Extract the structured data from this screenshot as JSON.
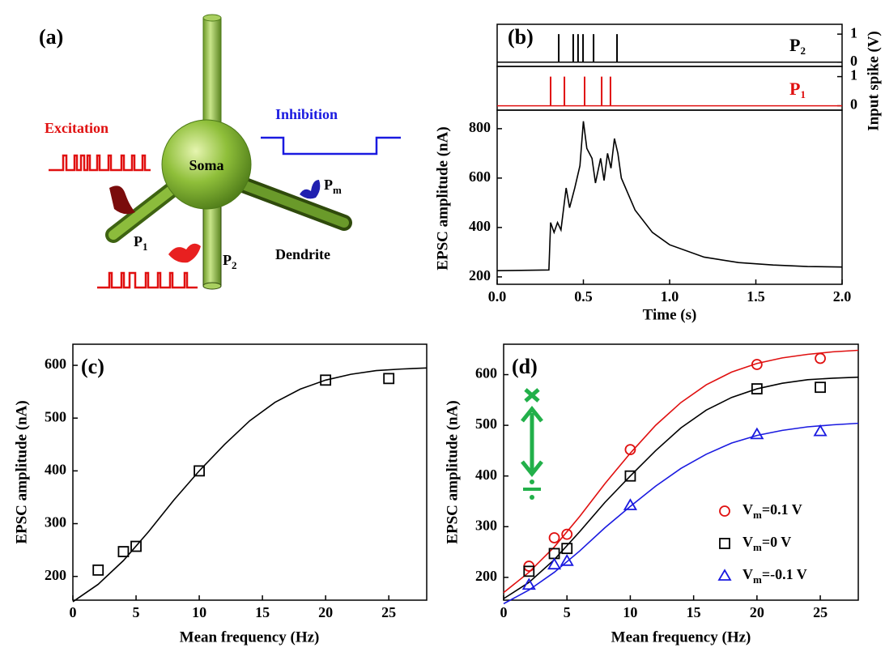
{
  "diagram": {
    "panel_label": "(a)",
    "excitation": "Excitation",
    "inhibition": "Inhibition",
    "soma": "Soma",
    "p1": [
      "P",
      "1"
    ],
    "p2": [
      "P",
      "2"
    ],
    "pm": [
      "P",
      "m"
    ],
    "dendrite": "Dendrite"
  },
  "chart_data": [
    {
      "type": "spike",
      "panel_label": "(b)",
      "name": [
        "P",
        "2"
      ],
      "color": "#000000",
      "x": [
        0.357,
        0.441,
        0.469,
        0.498,
        0.559,
        0.695
      ],
      "values": [
        1,
        1,
        1,
        1,
        1,
        1
      ],
      "xlim": [
        0,
        2
      ],
      "ylim": [
        -0.15,
        1.35
      ],
      "yticks": [
        0,
        1
      ],
      "y_label": "Input spike (V)"
    },
    {
      "type": "spike",
      "name": [
        "P",
        "1"
      ],
      "color": "#e01010",
      "x": [
        0.31,
        0.39,
        0.507,
        0.606,
        0.657
      ],
      "values": [
        1,
        1,
        1,
        1,
        1
      ],
      "xlim": [
        0,
        2
      ],
      "ylim": [
        -0.15,
        1.35
      ],
      "yticks": [
        0,
        1
      ]
    },
    {
      "type": "line",
      "color": "#000000",
      "x": [
        0,
        0.3,
        0.31,
        0.33,
        0.35,
        0.37,
        0.4,
        0.42,
        0.45,
        0.48,
        0.5,
        0.52,
        0.55,
        0.57,
        0.6,
        0.62,
        0.64,
        0.66,
        0.68,
        0.7,
        0.72,
        0.8,
        0.9,
        1.0,
        1.2,
        1.4,
        1.6,
        1.8,
        2.0
      ],
      "values": [
        225,
        228,
        420,
        380,
        420,
        390,
        560,
        480,
        560,
        650,
        830,
        720,
        680,
        580,
        680,
        590,
        700,
        640,
        760,
        700,
        600,
        470,
        380,
        330,
        280,
        258,
        248,
        242,
        240
      ],
      "xlim": [
        0,
        2
      ],
      "ylim": [
        170,
        875
      ],
      "xticks": [
        {
          "value": 0,
          "label": "0.0"
        },
        0.5,
        {
          "value": 1,
          "label": "1.0"
        },
        1.5,
        {
          "value": 2,
          "label": "2.0"
        }
      ],
      "yticks": [
        200,
        400,
        600,
        800
      ],
      "x_label": "Time (s)",
      "y_label": "EPSC amplitude (nA)"
    },
    {
      "type": "scatter",
      "panel_label": "(c)",
      "xlim": [
        0,
        28
      ],
      "ylim": [
        155,
        640
      ],
      "xticks": [
        0,
        5,
        10,
        15,
        20,
        25
      ],
      "yticks": [
        200,
        300,
        400,
        500,
        600
      ],
      "x_label": "Mean frequency (Hz)",
      "y_label": "EPSC amplitude (nA)",
      "series": [
        {
          "color": "#000000",
          "marker": "square",
          "x": [
            2,
            4,
            5,
            10,
            20,
            25
          ],
          "values": [
            212,
            247,
            257,
            400,
            572,
            575
          ]
        }
      ],
      "fits": [
        {
          "color": "#000000",
          "x": [
            0,
            2,
            4,
            6,
            8,
            10,
            12,
            14,
            16,
            18,
            20,
            22,
            24,
            26,
            28
          ],
          "values": [
            152,
            185,
            230,
            285,
            345,
            400,
            450,
            495,
            530,
            555,
            572,
            583,
            590,
            593,
            595
          ]
        }
      ]
    },
    {
      "type": "scatter",
      "panel_label": "(d)",
      "xlim": [
        0,
        28
      ],
      "ylim": [
        155,
        660
      ],
      "xticks": [
        0,
        5,
        10,
        15,
        20,
        25
      ],
      "yticks": [
        200,
        300,
        400,
        500,
        600
      ],
      "x_label": "Mean frequency (Hz)",
      "y_label": "EPSC amplitude (nA)",
      "legend": "lower right",
      "series": [
        {
          "name": [
            "V",
            "m",
            "=0.1 V"
          ],
          "color": "#e01010",
          "marker": "circle",
          "x": [
            2,
            4,
            5,
            10,
            20,
            25
          ],
          "values": [
            222,
            278,
            285,
            452,
            620,
            632
          ]
        },
        {
          "name": [
            "V",
            "m",
            "=0 V"
          ],
          "color": "#000000",
          "marker": "square",
          "x": [
            2,
            4,
            5,
            10,
            20,
            25
          ],
          "values": [
            212,
            247,
            257,
            400,
            572,
            575
          ]
        },
        {
          "name": [
            "V",
            "m",
            "=-0.1 V"
          ],
          "color": "#1a1ae0",
          "marker": "triangle",
          "x": [
            2,
            4,
            5,
            10,
            20,
            25
          ],
          "values": [
            185,
            225,
            232,
            342,
            482,
            488
          ]
        }
      ],
      "fits": [
        {
          "color": "#e01010",
          "x": [
            0,
            2,
            4,
            6,
            8,
            10,
            12,
            14,
            16,
            18,
            20,
            22,
            24,
            26,
            28
          ],
          "values": [
            170,
            210,
            260,
            320,
            385,
            445,
            500,
            545,
            580,
            605,
            622,
            633,
            640,
            645,
            648
          ]
        },
        {
          "color": "#000000",
          "x": [
            0,
            2,
            4,
            6,
            8,
            10,
            12,
            14,
            16,
            18,
            20,
            22,
            24,
            26,
            28
          ],
          "values": [
            158,
            190,
            235,
            290,
            348,
            400,
            450,
            495,
            530,
            555,
            572,
            583,
            590,
            593,
            595
          ]
        },
        {
          "color": "#1a1ae0",
          "x": [
            0,
            2,
            4,
            6,
            8,
            10,
            12,
            14,
            16,
            18,
            20,
            22,
            24,
            26,
            28
          ],
          "values": [
            148,
            175,
            210,
            252,
            298,
            340,
            380,
            415,
            443,
            465,
            480,
            490,
            497,
            501,
            504
          ]
        }
      ]
    }
  ]
}
